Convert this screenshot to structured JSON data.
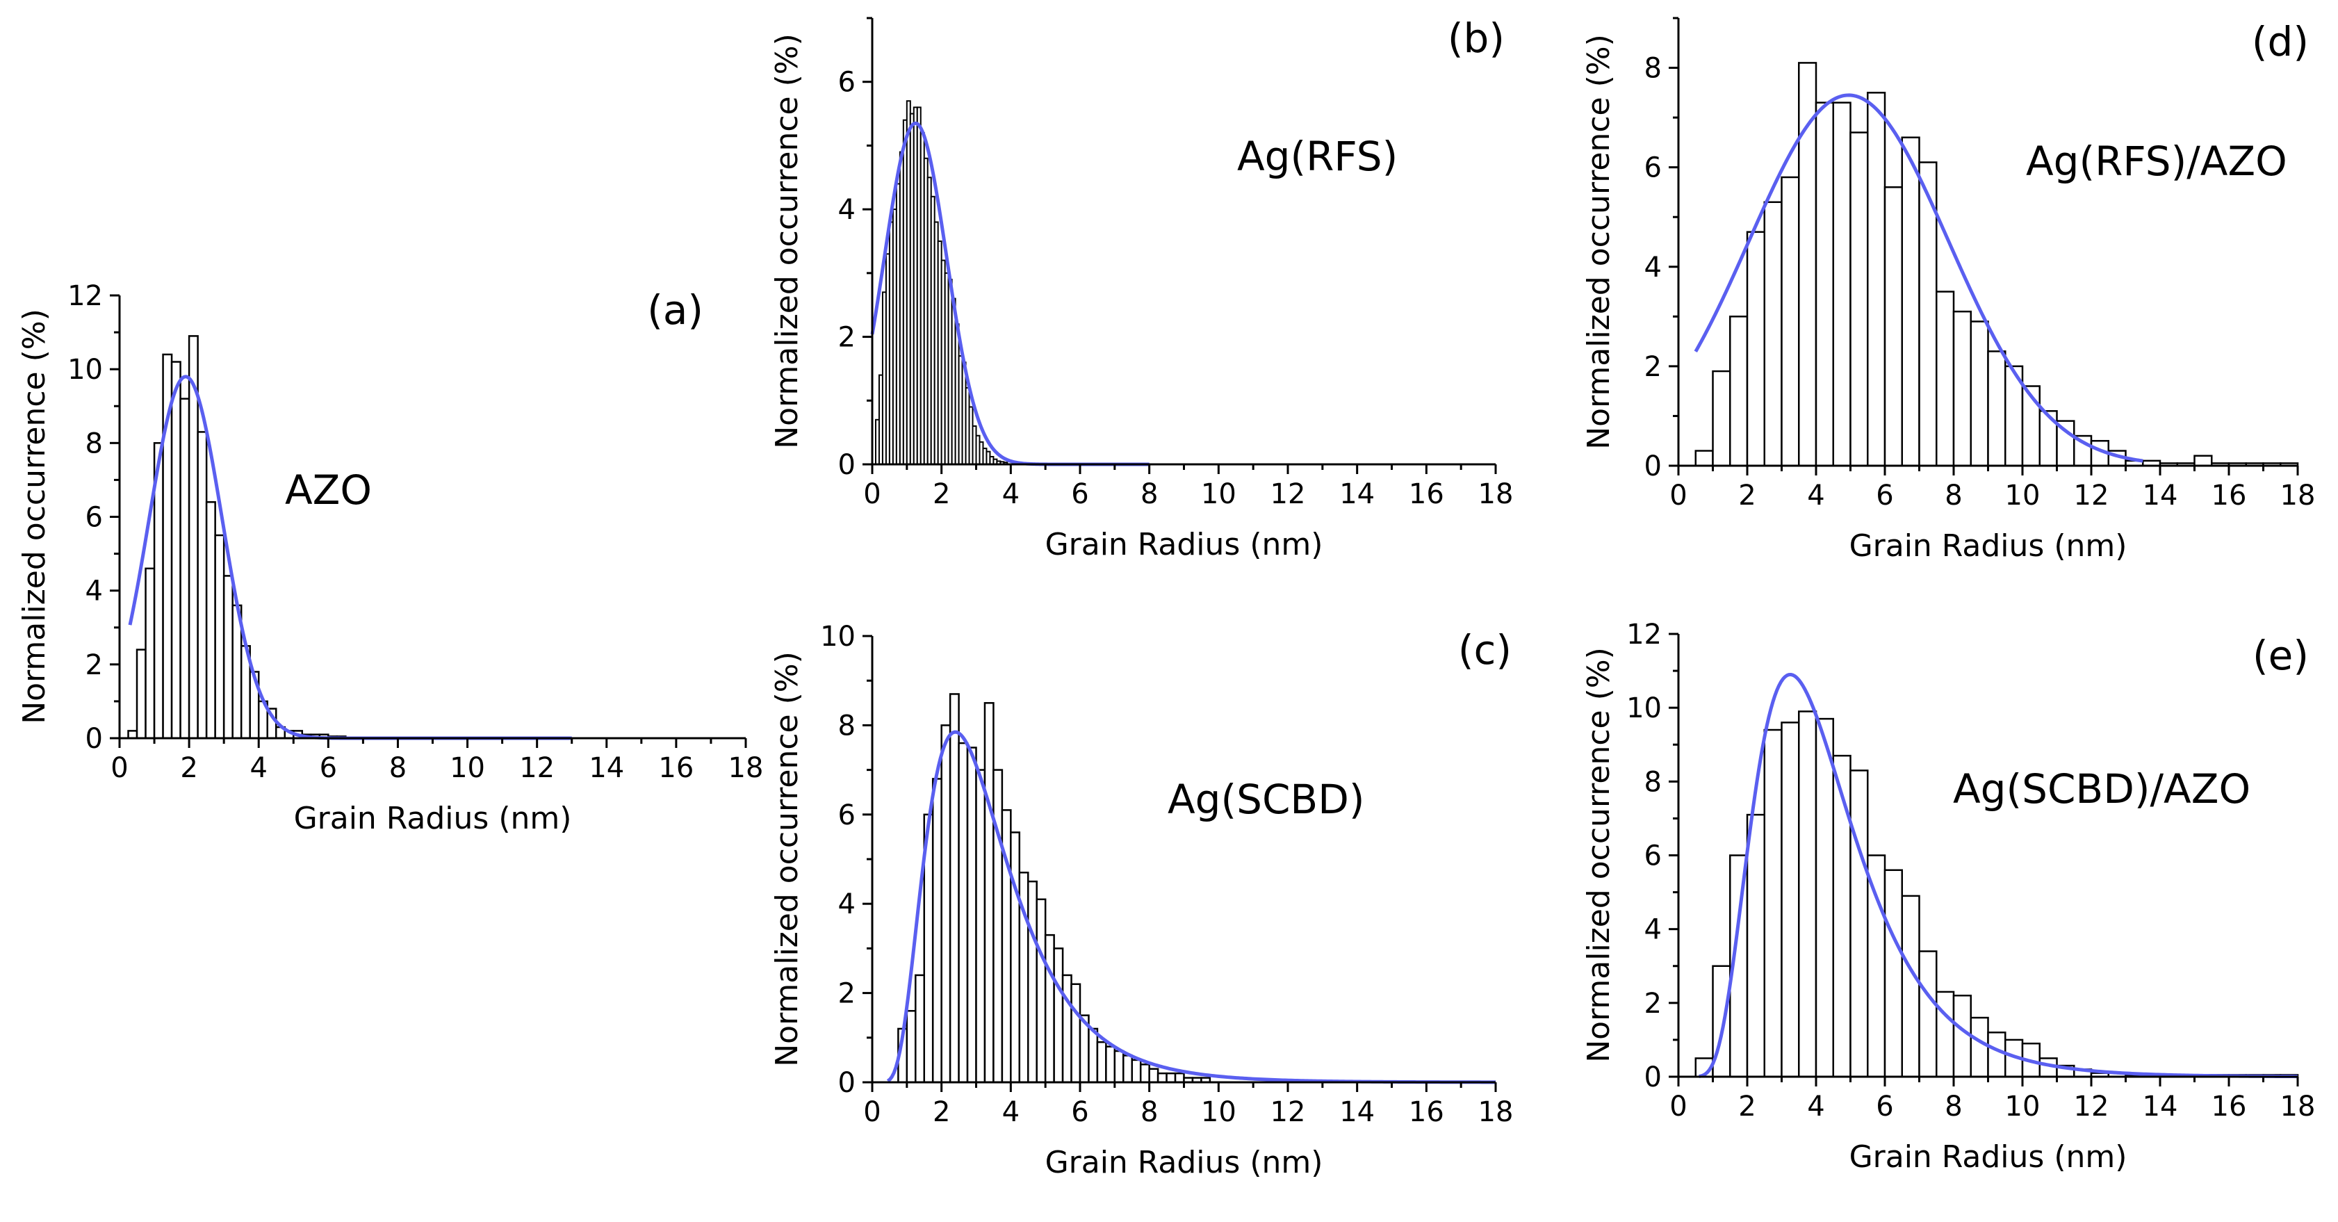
{
  "chart_data": [
    {
      "id": "a",
      "type": "bar",
      "panel_label": "(a)",
      "sample": "AZO",
      "xlabel": "Grain Radius (nm)",
      "ylabel": "Normalized occurrence (%)",
      "xlim": [
        0,
        18
      ],
      "ylim": [
        0,
        12
      ],
      "xticks": [
        0,
        2,
        4,
        6,
        8,
        10,
        12,
        14,
        16,
        18
      ],
      "yticks": [
        0,
        2,
        4,
        6,
        8,
        10,
        12
      ],
      "bin_start": 0.25,
      "bin_width": 0.25,
      "values": [
        0.2,
        2.4,
        4.6,
        8.0,
        10.4,
        10.2,
        9.2,
        10.9,
        8.3,
        6.4,
        5.5,
        4.4,
        3.6,
        2.5,
        1.8,
        1.0,
        0.8,
        0.3,
        0.2,
        0.2,
        0.1,
        0.1,
        0.1,
        0.05,
        0.05
      ],
      "fit": {
        "type": "gaussian",
        "amplitude": 9.8,
        "center": 1.9,
        "sigma": 1.05,
        "x_range": [
          0.3,
          13
        ]
      }
    },
    {
      "id": "b",
      "type": "bar",
      "panel_label": "(b)",
      "sample": "Ag(RFS)",
      "xlabel": "Grain Radius (nm)",
      "ylabel": "Normalized occurrence (%)",
      "xlim": [
        0,
        18
      ],
      "ylim": [
        0,
        7
      ],
      "xticks": [
        0,
        2,
        4,
        6,
        8,
        10,
        12,
        14,
        16,
        18
      ],
      "yticks": [
        0,
        2,
        4,
        6
      ],
      "bin_start": 0.1,
      "bin_width": 0.1,
      "values": [
        0.7,
        1.4,
        2.7,
        3.3,
        3.8,
        4.0,
        4.4,
        4.9,
        5.4,
        5.7,
        5.5,
        5.6,
        5.6,
        5.2,
        4.8,
        4.5,
        4.2,
        3.8,
        3.5,
        3.2,
        3.0,
        2.9,
        2.6,
        2.2,
        1.7,
        1.6,
        1.2,
        0.9,
        0.6,
        0.45,
        0.35,
        0.25,
        0.2,
        0.12,
        0.08,
        0.05,
        0.04,
        0.03
      ],
      "fit": {
        "type": "gaussian",
        "amplitude": 5.35,
        "center": 1.25,
        "sigma": 0.9,
        "x_range": [
          0,
          8
        ]
      }
    },
    {
      "id": "c",
      "type": "bar",
      "panel_label": "(c)",
      "sample": "Ag(SCBD)",
      "xlabel": "Grain Radius (nm)",
      "ylabel": "Normalized occurrence (%)",
      "xlim": [
        0,
        18
      ],
      "ylim": [
        0,
        10
      ],
      "xticks": [
        0,
        2,
        4,
        6,
        8,
        10,
        12,
        14,
        16,
        18
      ],
      "yticks": [
        0,
        2,
        4,
        6,
        8,
        10
      ],
      "bin_start": 0.75,
      "bin_width": 0.25,
      "values": [
        1.2,
        1.6,
        2.4,
        6.0,
        6.8,
        8.0,
        8.7,
        7.6,
        7.5,
        7.0,
        8.5,
        7.0,
        6.1,
        5.6,
        4.7,
        4.5,
        4.1,
        3.3,
        3.0,
        2.4,
        2.2,
        1.5,
        1.2,
        0.9,
        0.8,
        0.7,
        0.6,
        0.5,
        0.4,
        0.3,
        0.2,
        0.2,
        0.2,
        0.1,
        0.1,
        0.1
      ],
      "fit": {
        "type": "lognormal",
        "amplitude": 7.85,
        "mode": 2.4,
        "sigma": 0.5,
        "x_range": [
          0.45,
          18
        ]
      }
    },
    {
      "id": "d",
      "type": "bar",
      "panel_label": "(d)",
      "sample": "Ag(RFS)/AZO",
      "xlabel": "Grain Radius (nm)",
      "ylabel": "Normalized occurrence (%)",
      "xlim": [
        0,
        18
      ],
      "ylim": [
        0,
        9
      ],
      "xticks": [
        0,
        2,
        4,
        6,
        8,
        10,
        12,
        14,
        16,
        18
      ],
      "yticks": [
        0,
        2,
        4,
        6,
        8
      ],
      "bin_start": 0.5,
      "bin_width": 0.5,
      "values": [
        0.3,
        1.9,
        3.0,
        4.7,
        5.3,
        5.8,
        8.1,
        7.3,
        7.3,
        6.7,
        7.5,
        5.6,
        6.6,
        6.1,
        3.5,
        3.1,
        2.9,
        2.3,
        2.0,
        1.6,
        1.1,
        0.9,
        0.6,
        0.5,
        0.3,
        0.1,
        0.1,
        0.05,
        0.05,
        0.2,
        0.05,
        0.05,
        0.05,
        0.05,
        0.05
      ],
      "fit": {
        "type": "gaussian",
        "amplitude": 7.45,
        "center": 4.95,
        "sigma": 2.9,
        "x_range": [
          0.5,
          13.5
        ]
      }
    },
    {
      "id": "e",
      "type": "bar",
      "panel_label": "(e)",
      "sample": "Ag(SCBD)/AZO",
      "xlabel": "Grain Radius (nm)",
      "ylabel": "Normalized occurrence (%)",
      "xlim": [
        0,
        18
      ],
      "ylim": [
        0,
        12
      ],
      "xticks": [
        0,
        2,
        4,
        6,
        8,
        10,
        12,
        14,
        16,
        18
      ],
      "yticks": [
        0,
        2,
        4,
        6,
        8,
        10,
        12
      ],
      "bin_start": 0.5,
      "bin_width": 0.5,
      "values": [
        0.5,
        3.0,
        6.0,
        7.1,
        9.4,
        9.6,
        9.9,
        9.7,
        8.7,
        8.3,
        6.0,
        5.6,
        4.9,
        3.4,
        2.3,
        2.2,
        1.6,
        1.2,
        1.0,
        0.9,
        0.5,
        0.3,
        0.2,
        0.1,
        0.1,
        0.05,
        0.05,
        0.05,
        0.05,
        0.05,
        0.05,
        0.05,
        0.05,
        0.05,
        0.05
      ],
      "fit": {
        "type": "lognormal",
        "amplitude": 10.9,
        "mode": 3.25,
        "sigma": 0.45,
        "x_range": [
          0.6,
          18
        ]
      }
    }
  ]
}
